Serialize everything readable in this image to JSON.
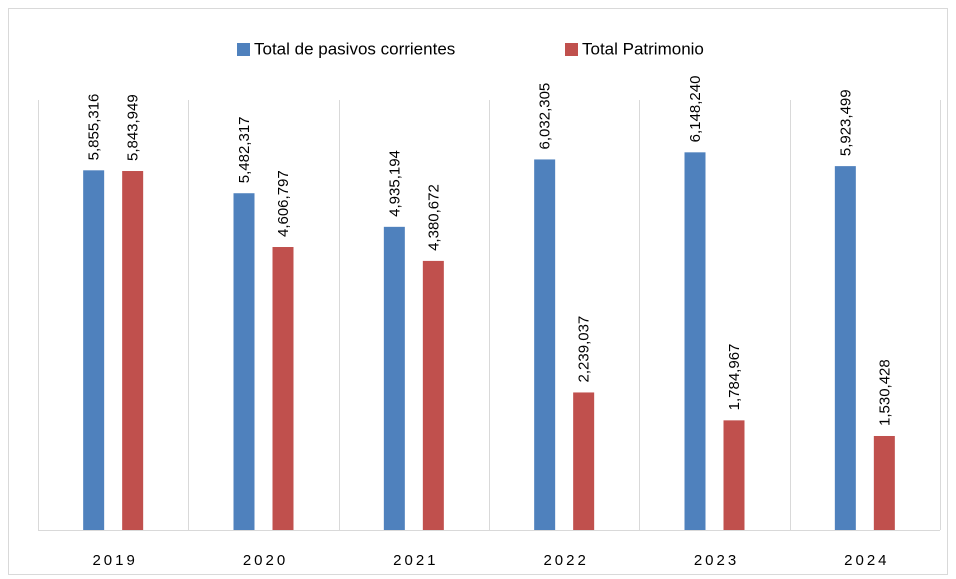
{
  "chart_data": {
    "type": "bar",
    "categories": [
      "2019",
      "2020",
      "2021",
      "2022",
      "2023",
      "2024"
    ],
    "series": [
      {
        "name": "Total de pasivos corrientes",
        "color": "#4f81bd",
        "values": [
          5855316,
          5482317,
          4935194,
          6032305,
          6148240,
          5923499
        ],
        "value_labels": [
          "5,855,316",
          "5,482,317",
          "4,935,194",
          "6,032,305",
          "6,148,240",
          "5,923,499"
        ]
      },
      {
        "name": "Total Patrimonio",
        "color": "#c0504d",
        "values": [
          5843949,
          4606797,
          4380672,
          2239037,
          1784967,
          1530428
        ],
        "value_labels": [
          "5,843,949",
          "4,606,797",
          "4,380,672",
          "2,239,037",
          "1,784,967",
          "1,530,428"
        ]
      }
    ],
    "ylim": [
      0,
      7000000
    ],
    "legend": "top"
  }
}
